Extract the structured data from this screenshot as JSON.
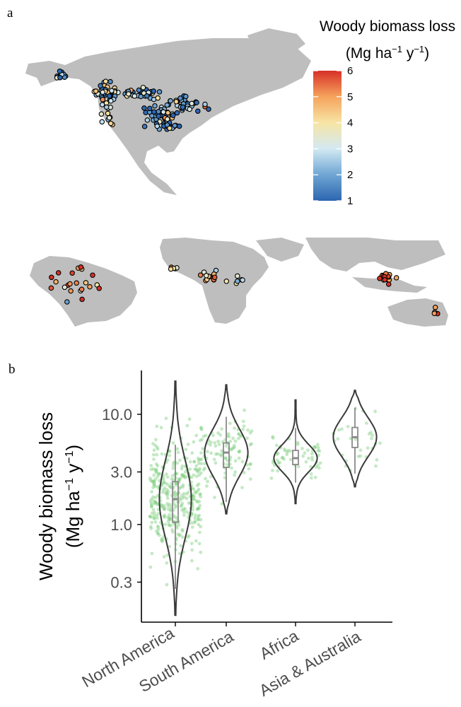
{
  "panels": {
    "a": "a",
    "b": "b"
  },
  "colorbar": {
    "title": "Woody biomass loss",
    "unit_base": "(Mg ha",
    "unit_sup1": "−1",
    "unit_mid": " y",
    "unit_sup2": "−1",
    "unit_close": ")",
    "ticks": [
      "6",
      "5",
      "4",
      "3",
      "2",
      "1"
    ],
    "min": 1,
    "max": 6,
    "colors": [
      "#2c66b0",
      "#6fa6d4",
      "#d3e9f2",
      "#f7e5a5",
      "#f6a35c",
      "#d73027"
    ]
  },
  "map_colors": {
    "land": "#bebebe",
    "point_outline": "#000000"
  },
  "chart_data": {
    "type": "violin",
    "title": "",
    "ylabel_line1": "Woody biomass loss",
    "ylabel_line2_base": "(Mg ha",
    "ylabel_sup1": "−1",
    "ylabel_mid": " y",
    "ylabel_sup2": "−1",
    "ylabel_close": ")",
    "y_scale": "log10",
    "ylim": [
      0.13,
      25
    ],
    "y_ticks": [
      {
        "value": 10.0,
        "label": "10.0"
      },
      {
        "value": 3.0,
        "label": "3.0"
      },
      {
        "value": 1.0,
        "label": "1.0"
      },
      {
        "value": 0.3,
        "label": "0.3"
      }
    ],
    "categories": [
      "North America",
      "South America",
      "Africa",
      "Asia & Australia"
    ],
    "series": [
      {
        "category": "North America",
        "median": 1.7,
        "q1": 1.05,
        "q3": 2.45,
        "whisker_low": 0.26,
        "whisker_high": 5.3,
        "min": 0.15,
        "max": 20,
        "n_points": 380
      },
      {
        "category": "South America",
        "median": 4.5,
        "q1": 3.3,
        "q3": 5.5,
        "whisker_low": 1.6,
        "whisker_high": 9.5,
        "min": 1.25,
        "max": 18.5,
        "n_points": 110
      },
      {
        "category": "Africa",
        "median": 4.0,
        "q1": 3.5,
        "q3": 4.7,
        "whisker_low": 2.4,
        "whisker_high": 7.5,
        "min": 1.55,
        "max": 13.5,
        "n_points": 60
      },
      {
        "category": "Asia & Australia",
        "median": 6.2,
        "q1": 5.0,
        "q3": 7.6,
        "whisker_low": 2.9,
        "whisker_high": 11.5,
        "min": 2.2,
        "max": 16.5,
        "n_points": 30
      }
    ],
    "colors": {
      "jitter": "#7fce7f",
      "violin": "#3a3a3a",
      "box": "#8a8a8a"
    },
    "grid": false,
    "legend": "none"
  }
}
